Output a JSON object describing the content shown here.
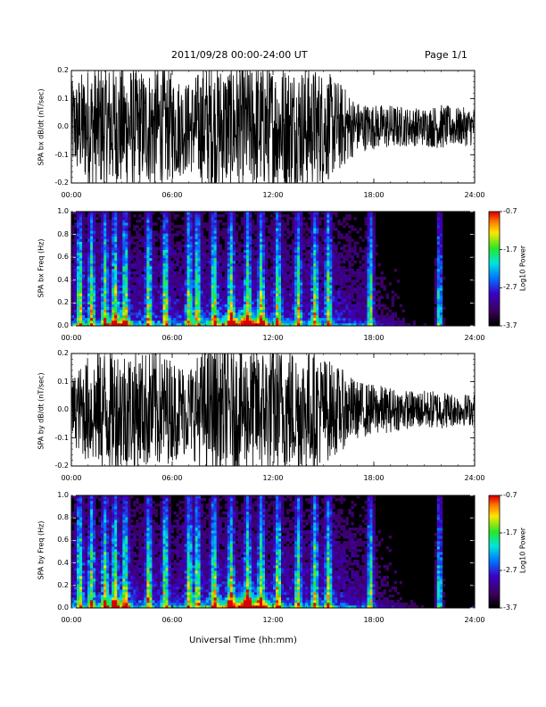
{
  "header": {
    "title": "2011/09/28  00:00-24:00 UT",
    "page": "Page 1/1"
  },
  "xlabel": "Universal Time (hh:mm)",
  "x_ticks": [
    "00:00",
    "06:00",
    "12:00",
    "18:00",
    "24:00"
  ],
  "chart_data": [
    {
      "type": "line",
      "ylabel": "SPA bx dB/dt (nT/sec)",
      "y_ticks": [
        "-0.2",
        "-0.1",
        "0.0",
        "0.1",
        "0.2"
      ],
      "xlim": [
        0,
        24
      ],
      "ylim": [
        -0.2,
        0.2
      ],
      "series": [
        {
          "x": [
            0,
            1,
            2,
            3,
            4,
            5,
            6,
            7,
            8,
            9,
            10,
            11,
            12,
            13,
            14,
            15,
            16,
            17,
            18,
            19,
            20,
            21,
            22,
            23,
            24
          ],
          "y_amplitude": [
            0.14,
            0.19,
            0.2,
            0.2,
            0.18,
            0.19,
            0.17,
            0.14,
            0.2,
            0.2,
            0.2,
            0.2,
            0.2,
            0.2,
            0.19,
            0.18,
            0.14,
            0.08,
            0.07,
            0.07,
            0.06,
            0.06,
            0.07,
            0.06,
            0.06
          ]
        }
      ]
    },
    {
      "type": "heatmap",
      "ylabel": "SPA bx Freq (Hz)",
      "y_ticks": [
        "0.0",
        "0.2",
        "0.4",
        "0.6",
        "0.8",
        "1.0"
      ],
      "xlim": [
        0,
        24
      ],
      "ylim": [
        0,
        1.0
      ],
      "colorbar": {
        "label": "Log10 Power",
        "ticks": [
          "-0.7",
          "-1.7",
          "-2.7",
          "-3.7"
        ],
        "range": [
          -3.7,
          -0.7
        ]
      },
      "spike_hours": [
        0.5,
        1.2,
        2.0,
        2.6,
        3.2,
        4.6,
        5.6,
        7.0,
        7.5,
        8.5,
        9.5,
        10.5,
        11.3,
        12.3,
        13.5,
        14.5,
        15.3,
        17.8,
        21.9
      ],
      "background_level": 0.35
    },
    {
      "type": "line",
      "ylabel": "SPA by dB/dt (nT/sec)",
      "y_ticks": [
        "-0.2",
        "-0.1",
        "0.0",
        "0.1",
        "0.2"
      ],
      "xlim": [
        0,
        24
      ],
      "ylim": [
        -0.2,
        0.2
      ],
      "series": [
        {
          "x": [
            0,
            1,
            2,
            3,
            4,
            5,
            6,
            7,
            8,
            9,
            10,
            11,
            12,
            13,
            14,
            15,
            16,
            17,
            18,
            19,
            20,
            21,
            22,
            23,
            24
          ],
          "y_amplitude": [
            0.1,
            0.17,
            0.2,
            0.2,
            0.18,
            0.19,
            0.16,
            0.14,
            0.2,
            0.2,
            0.2,
            0.2,
            0.2,
            0.2,
            0.19,
            0.17,
            0.13,
            0.09,
            0.08,
            0.07,
            0.06,
            0.06,
            0.06,
            0.05,
            0.05
          ]
        }
      ]
    },
    {
      "type": "heatmap",
      "ylabel": "SPA by Freq (Hz)",
      "y_ticks": [
        "0.0",
        "0.2",
        "0.4",
        "0.6",
        "0.8",
        "1.0"
      ],
      "xlim": [
        0,
        24
      ],
      "ylim": [
        0,
        1.0
      ],
      "colorbar": {
        "label": "Log10 Power",
        "ticks": [
          "-0.7",
          "-1.7",
          "-2.7",
          "-3.7"
        ],
        "range": [
          -3.7,
          -0.7
        ]
      },
      "spike_hours": [
        0.5,
        1.2,
        2.0,
        2.6,
        3.2,
        4.6,
        5.6,
        7.0,
        7.5,
        8.5,
        9.5,
        10.5,
        11.3,
        12.3,
        13.5,
        14.5,
        15.3,
        17.8,
        21.9
      ],
      "background_level": 0.35
    }
  ]
}
